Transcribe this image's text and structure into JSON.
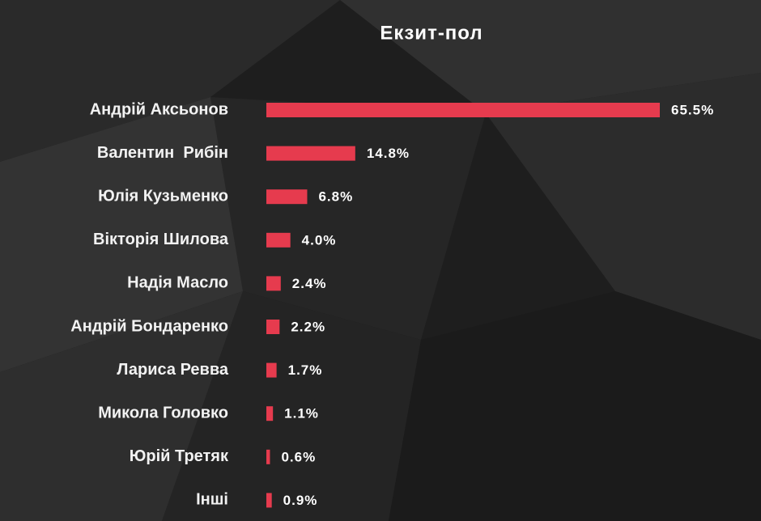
{
  "chart_data": {
    "type": "hbar",
    "title": "Екзит-пол",
    "categories": [
      "Андрій Аксьонов",
      "Валентин  Рибін",
      "Юлія Кузьменко",
      "Вікторія Шилова",
      "Надія Масло",
      "Андрій Бондаренко",
      "Лариса Ревва",
      "Микола Головко",
      "Юрій Третяк",
      "Інші"
    ],
    "values": [
      65.5,
      14.8,
      6.8,
      4.0,
      2.4,
      2.2,
      1.7,
      1.1,
      0.6,
      0.9
    ],
    "value_labels": [
      "65.5%",
      "14.8%",
      "6.8%",
      "4.0%",
      "2.4%",
      "2.2%",
      "1.7%",
      "1.1%",
      "0.6%",
      "0.9%"
    ],
    "color": "#e63b4e"
  }
}
